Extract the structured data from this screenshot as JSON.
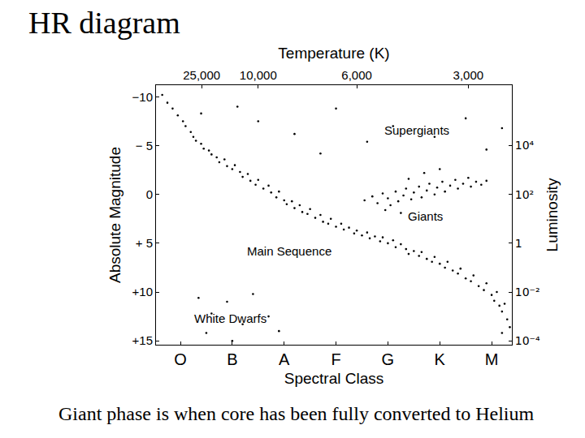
{
  "chart_data": {
    "type": "scatter",
    "title": "HR diagram",
    "caption": "Giant phase is when core has been fully converted to Helium",
    "xlabel": "Spectral Class",
    "ylabel": "Absolute Magnitude",
    "x2label": "Temperature (K)",
    "y2label": "Luminosity",
    "xlim": [
      -0.47,
      6.39
    ],
    "xticks": [
      {
        "value": 0,
        "label": "O"
      },
      {
        "value": 1,
        "label": "B"
      },
      {
        "value": 2,
        "label": "A"
      },
      {
        "value": 3,
        "label": "F"
      },
      {
        "value": 4,
        "label": "G"
      },
      {
        "value": 5,
        "label": "K"
      },
      {
        "value": 6,
        "label": "M"
      }
    ],
    "x2lim": [
      -0.47,
      6.39
    ],
    "x2ticks": [
      {
        "value": 0.41,
        "label": "25,000"
      },
      {
        "value": 1.5,
        "label": "10,000"
      },
      {
        "value": 3.4,
        "label": "6,000"
      },
      {
        "value": 5.55,
        "label": "3,000"
      }
    ],
    "ylim": [
      15.4,
      -11.2
    ],
    "yticks": [
      {
        "value": -10,
        "label": "−10"
      },
      {
        "value": -5,
        "label": "− 5"
      },
      0,
      {
        "value": 5,
        "label": "+ 5"
      },
      {
        "value": 10,
        "label": "+10"
      },
      {
        "value": 15,
        "label": "+15"
      }
    ],
    "log": "y2",
    "y2lim": [
      6.92e-05,
      3020000
    ],
    "y2ticks": [
      {
        "value": 10000,
        "label": "10⁴"
      },
      {
        "value": 100,
        "label": "10²"
      },
      1,
      {
        "value": 0.01,
        "label": "10⁻²"
      },
      {
        "value": 0.0001,
        "label": "10⁻⁴"
      }
    ],
    "grid": false,
    "color": "#000000",
    "marker": "dot",
    "annotations": [
      {
        "text": "Supergiants",
        "x": 4.55,
        "y": -6.6
      },
      {
        "text": "Giants",
        "x": 4.72,
        "y": 2.26
      },
      {
        "text": "Main Sequence",
        "x": 2.1,
        "y": 5.8
      },
      {
        "text": "White Dwarfs",
        "x": 0.97,
        "y": 12.7
      }
    ],
    "x": [
      -0.35,
      -0.25,
      -0.15,
      -0.05,
      0.05,
      0.1,
      0.2,
      0.25,
      0.3,
      0.4,
      0.45,
      0.55,
      0.6,
      0.7,
      0.75,
      0.85,
      0.9,
      1.0,
      1.05,
      1.15,
      1.2,
      1.3,
      1.35,
      1.45,
      1.5,
      1.6,
      1.7,
      1.75,
      1.85,
      1.9,
      2.0,
      2.05,
      2.15,
      2.2,
      2.3,
      2.35,
      2.45,
      2.5,
      2.6,
      2.7,
      2.75,
      2.85,
      2.9,
      3.0,
      3.1,
      3.15,
      3.25,
      3.35,
      3.4,
      3.5,
      3.6,
      3.65,
      3.75,
      3.85,
      3.9,
      4.0,
      4.1,
      4.15,
      4.25,
      4.35,
      4.4,
      4.5,
      4.6,
      4.65,
      4.75,
      4.85,
      4.9,
      5.0,
      5.1,
      5.15,
      5.25,
      5.35,
      5.4,
      5.5,
      5.6,
      5.65,
      5.75,
      5.85,
      5.9,
      6.0,
      6.05,
      6.1,
      6.15,
      6.2,
      6.25,
      6.3,
      6.35,
      6.2,
      3.55,
      3.7,
      3.8,
      3.9,
      4.0,
      4.05,
      4.15,
      4.2,
      4.3,
      4.35,
      4.45,
      4.5,
      4.6,
      4.65,
      4.75,
      4.8,
      4.9,
      4.95,
      5.05,
      5.1,
      5.2,
      5.3,
      5.35,
      5.45,
      5.55,
      5.6,
      5.7,
      5.8,
      5.9,
      4.4,
      4.7,
      5.0,
      3.95,
      4.25,
      0.4,
      1.5,
      2.2,
      3.0,
      3.6,
      4.1,
      4.9,
      5.5,
      5.9,
      6.2,
      2.7,
      1.1,
      0.35,
      0.6,
      0.9,
      1.2,
      1.4,
      1.7,
      0.5,
      1.9,
      1.0
    ],
    "values": [
      -10.2,
      -9.4,
      -8.8,
      -8.1,
      -7.5,
      -7.0,
      -6.4,
      -5.9,
      -5.5,
      -5.2,
      -4.7,
      -4.5,
      -4.1,
      -3.8,
      -3.3,
      -3.6,
      -2.9,
      -2.6,
      -3.0,
      -2.3,
      -1.8,
      -2.1,
      -1.4,
      -1.0,
      -1.5,
      -0.6,
      -0.9,
      -0.2,
      0.3,
      -0.3,
      0.6,
      1.0,
      0.7,
      1.4,
      1.1,
      1.8,
      2.0,
      1.5,
      2.4,
      2.1,
      2.8,
      3.0,
      2.5,
      3.3,
      3.0,
      3.6,
      3.4,
      4.0,
      3.7,
      4.2,
      3.9,
      4.5,
      4.3,
      4.8,
      4.4,
      5.0,
      4.7,
      5.4,
      5.1,
      5.6,
      6.1,
      5.8,
      6.3,
      5.9,
      6.6,
      6.9,
      6.4,
      7.1,
      7.5,
      6.9,
      7.8,
      8.1,
      7.6,
      8.6,
      8.9,
      8.3,
      9.4,
      9.8,
      9.1,
      10.3,
      10.9,
      10.0,
      11.4,
      12.0,
      11.2,
      12.8,
      13.6,
      14.2,
      0.6,
      0.2,
      0.9,
      -0.1,
      0.4,
      1.1,
      -0.3,
      0.7,
      0.1,
      -0.6,
      0.5,
      -0.2,
      -0.8,
      0.3,
      -0.4,
      -1.1,
      0.0,
      -0.7,
      -1.3,
      -0.3,
      -0.9,
      -1.5,
      -0.6,
      -1.1,
      -1.7,
      -0.8,
      -1.3,
      -1.0,
      -1.4,
      -1.6,
      -2.2,
      -2.6,
      1.6,
      1.9,
      -8.3,
      -7.5,
      -6.2,
      -8.8,
      -5.4,
      -7.0,
      -5.9,
      -7.8,
      -4.6,
      -6.8,
      -4.2,
      -9.0,
      10.6,
      12.2,
      11.0,
      13.3,
      10.2,
      12.5,
      14.2,
      14.0,
      15.0
    ]
  }
}
